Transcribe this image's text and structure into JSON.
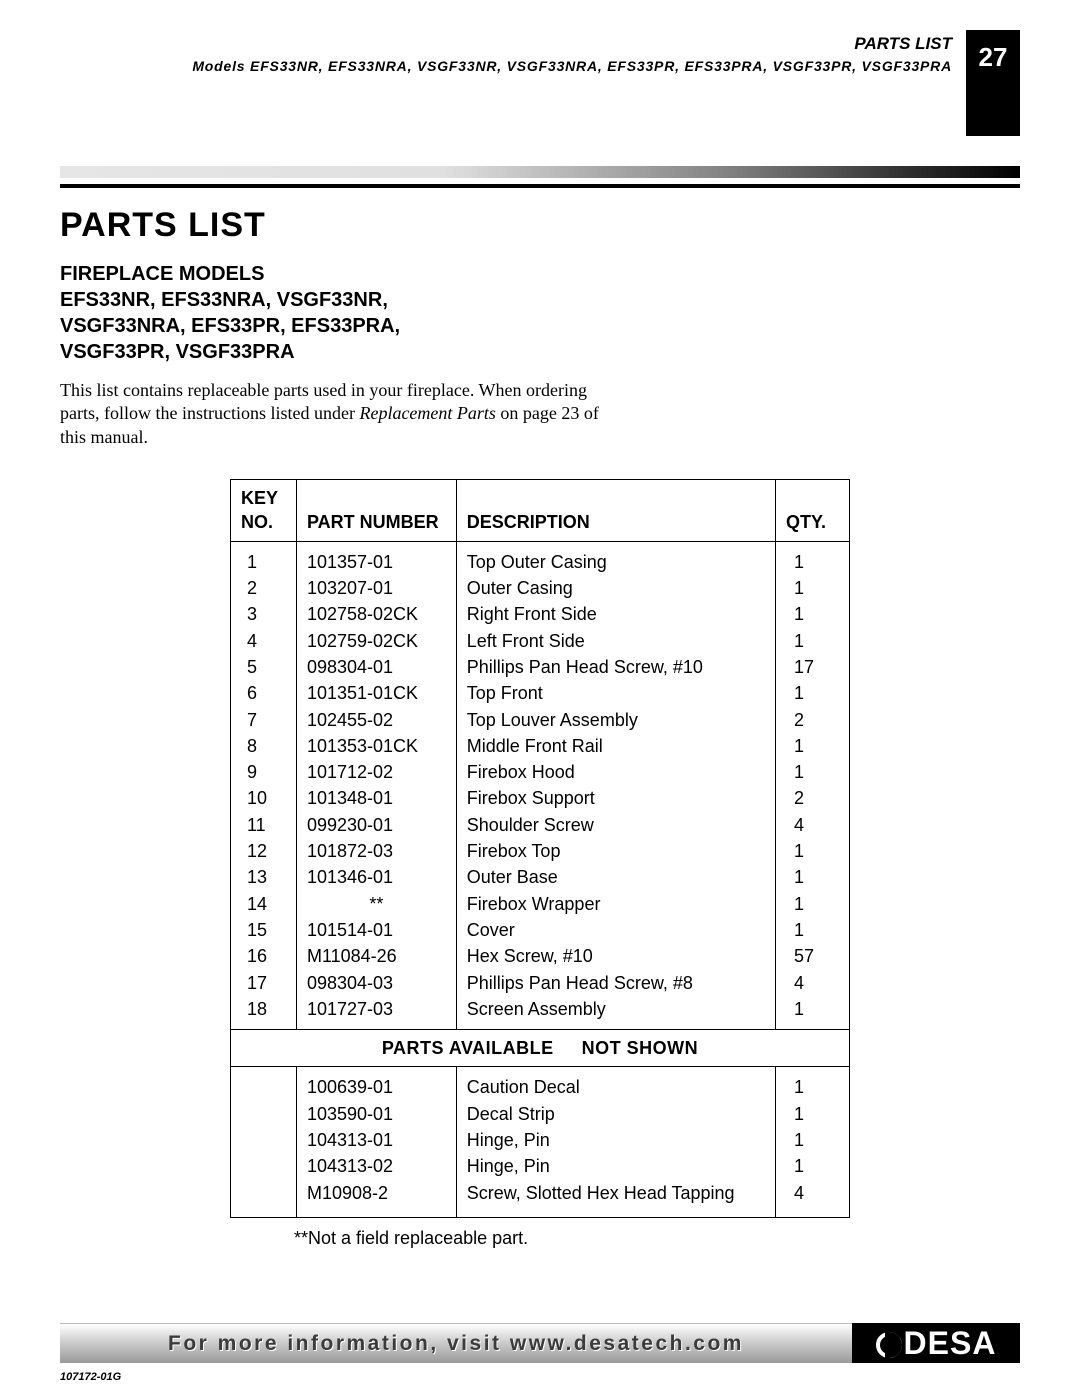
{
  "header": {
    "label": "PARTS LIST",
    "models_line": "Models EFS33NR, EFS33NRA, VSGF33NR, VSGF33NRA, EFS33PR, EFS33PRA, VSGF33PR, VSGF33PRA",
    "page_number": "27"
  },
  "title": "PARTS LIST",
  "subtitle": {
    "line1": "FIREPLACE MODELS",
    "line2": "EFS33NR, EFS33NRA, VSGF33NR,",
    "line3": "VSGF33NRA, EFS33PR, EFS33PRA,",
    "line4": "VSGF33PR, VSGF33PRA"
  },
  "intro": {
    "text1": "This list contains replaceable parts used in your fireplace. When ordering parts, follow the instructions listed under ",
    "italic": "Replacement Parts",
    "text2": " on page 23 of this manual."
  },
  "table": {
    "columns": {
      "key_l1": "KEY",
      "key_l2": "NO.",
      "part": "PART NUMBER",
      "desc": "DESCRIPTION",
      "qty": "QTY."
    },
    "rows": [
      {
        "key": "1",
        "part": "101357-01",
        "desc": "Top Outer Casing",
        "qty": "1"
      },
      {
        "key": "2",
        "part": "103207-01",
        "desc": "Outer Casing",
        "qty": "1"
      },
      {
        "key": "3",
        "part": "102758-02CK",
        "desc": "Right Front Side",
        "qty": "1"
      },
      {
        "key": "4",
        "part": "102759-02CK",
        "desc": "Left Front Side",
        "qty": "1"
      },
      {
        "key": "5",
        "part": "098304-01",
        "desc": "Phillips Pan Head Screw, #10",
        "qty": "17"
      },
      {
        "key": "6",
        "part": "101351-01CK",
        "desc": "Top Front",
        "qty": "1"
      },
      {
        "key": "7",
        "part": "102455-02",
        "desc": "Top Louver Assembly",
        "qty": "2"
      },
      {
        "key": "8",
        "part": "101353-01CK",
        "desc": "Middle Front Rail",
        "qty": "1"
      },
      {
        "key": "9",
        "part": "101712-02",
        "desc": "Firebox Hood",
        "qty": "1"
      },
      {
        "key": "10",
        "part": "101348-01",
        "desc": "Firebox Support",
        "qty": "2"
      },
      {
        "key": "11",
        "part": "099230-01",
        "desc": "Shoulder Screw",
        "qty": "4"
      },
      {
        "key": "12",
        "part": "101872-03",
        "desc": "Firebox Top",
        "qty": "1"
      },
      {
        "key": "13",
        "part": "101346-01",
        "desc": "Outer Base",
        "qty": "1"
      },
      {
        "key": "14",
        "part": "**",
        "desc": "Firebox Wrapper",
        "qty": "1",
        "part_centered": true
      },
      {
        "key": "15",
        "part": "101514-01",
        "desc": "Cover",
        "qty": "1"
      },
      {
        "key": "16",
        "part": "M11084-26",
        "desc": "Hex Screw, #10",
        "qty": "57"
      },
      {
        "key": "17",
        "part": "098304-03",
        "desc": "Phillips Pan Head Screw, #8",
        "qty": "4"
      },
      {
        "key": "18",
        "part": "101727-03",
        "desc": "Screen Assembly",
        "qty": "1"
      }
    ],
    "section_header": {
      "left": "PARTS AVAILABLE",
      "right": "NOT SHOWN"
    },
    "rows2": [
      {
        "key": "",
        "part": "100639-01",
        "desc": "Caution Decal",
        "qty": "1"
      },
      {
        "key": "",
        "part": "103590-01",
        "desc": "Decal Strip",
        "qty": "1"
      },
      {
        "key": "",
        "part": "104313-01",
        "desc": "Hinge, Pin",
        "qty": "1"
      },
      {
        "key": "",
        "part": "104313-02",
        "desc": "Hinge, Pin",
        "qty": "1"
      },
      {
        "key": "",
        "part": "M10908-2",
        "desc": "Screw, Slotted Hex Head Tapping",
        "qty": "4"
      }
    ]
  },
  "footnote": "**Not a field replaceable part.",
  "footer": {
    "info_text": "For more information, visit www.desatech.com",
    "logo_text": "DESA"
  },
  "doc_id": "107172-01G"
}
